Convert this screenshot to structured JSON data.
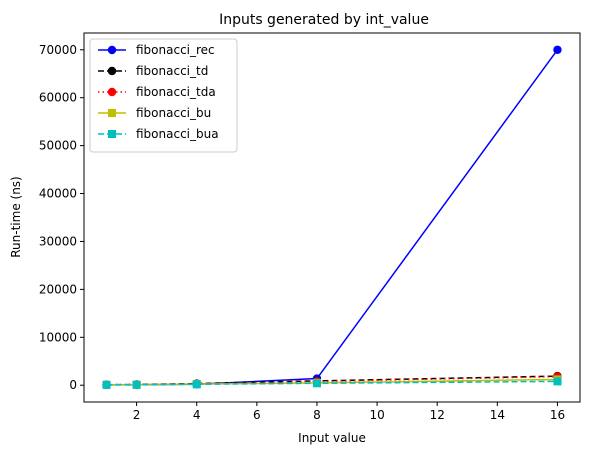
{
  "chart_data": {
    "type": "line",
    "title": "Inputs generated by int_value",
    "xlabel": "Input value",
    "ylabel": "Run-time (ns)",
    "x": [
      1,
      2,
      4,
      8,
      16
    ],
    "xlim": [
      0.25,
      16.75
    ],
    "ylim": [
      -3500,
      73500
    ],
    "xticks": [
      2,
      4,
      6,
      8,
      10,
      12,
      14,
      16
    ],
    "yticks": [
      0,
      10000,
      20000,
      30000,
      40000,
      50000,
      60000,
      70000
    ],
    "grid": false,
    "legend_position": "top-left",
    "series": [
      {
        "name": "fibonacci_rec",
        "values": [
          80,
          90,
          200,
          1400,
          70000
        ],
        "color": "#0000ff",
        "linestyle": "solid",
        "marker": "circle"
      },
      {
        "name": "fibonacci_td",
        "values": [
          100,
          150,
          350,
          900,
          1900
        ],
        "color": "#000000",
        "linestyle": "dashed",
        "marker": "circle"
      },
      {
        "name": "fibonacci_tda",
        "values": [
          120,
          140,
          300,
          800,
          1800
        ],
        "color": "#ff0000",
        "linestyle": "dotted",
        "marker": "circle"
      },
      {
        "name": "fibonacci_bu",
        "values": [
          90,
          110,
          250,
          500,
          1200
        ],
        "color": "#bfbf00",
        "linestyle": "solid",
        "marker": "square"
      },
      {
        "name": "fibonacci_bua",
        "values": [
          70,
          90,
          200,
          400,
          800
        ],
        "color": "#00bfbf",
        "linestyle": "dashed",
        "marker": "square"
      }
    ]
  }
}
